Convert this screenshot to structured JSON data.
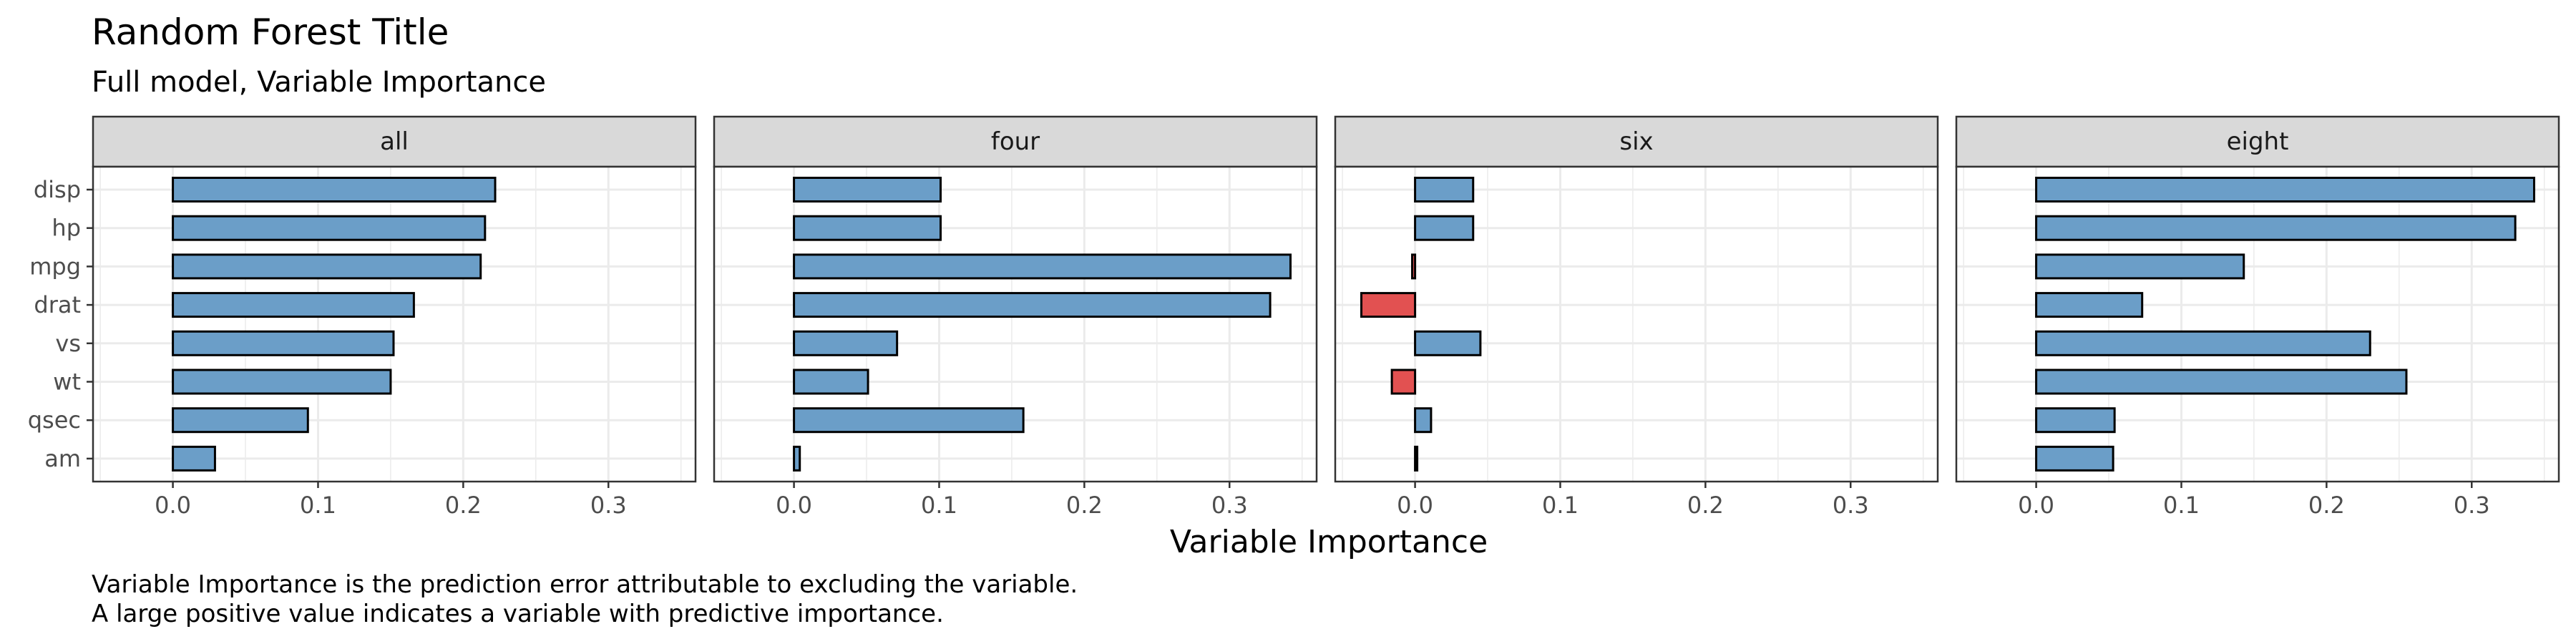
{
  "chart_data": {
    "type": "bar",
    "orientation": "horizontal",
    "title": "Random Forest Title",
    "subtitle": "Full model, Variable Importance",
    "xlabel": "Variable Importance",
    "ylabel": "",
    "caption_lines": [
      "Variable Importance is the prediction error attributable to excluding the variable.",
      "A large positive value indicates a variable with predictive importance."
    ],
    "categories": [
      "disp",
      "hp",
      "mpg",
      "drat",
      "vs",
      "wt",
      "qsec",
      "am"
    ],
    "xlim": [
      -0.055,
      0.36
    ],
    "x_ticks": [
      0.0,
      0.1,
      0.2,
      0.3
    ],
    "x_tick_labels": [
      "0.0",
      "0.1",
      "0.2",
      "0.3"
    ],
    "grid": true,
    "colors": {
      "positive": "#6b9ec8",
      "negative": "#e25151",
      "outline": "#000000",
      "strip_fill": "#d9d9d9",
      "grid": "#ebebeb",
      "panel_border": "#333333"
    },
    "panels": [
      {
        "name": "all",
        "values": [
          0.222,
          0.215,
          0.212,
          0.166,
          0.152,
          0.15,
          0.093,
          0.029
        ]
      },
      {
        "name": "four",
        "values": [
          0.101,
          0.101,
          0.342,
          0.328,
          0.071,
          0.051,
          0.158,
          0.004
        ]
      },
      {
        "name": "six",
        "values": [
          0.04,
          0.04,
          -0.002,
          -0.037,
          0.045,
          -0.016,
          0.011,
          0.001
        ]
      },
      {
        "name": "eight",
        "values": [
          0.343,
          0.33,
          0.143,
          0.073,
          0.23,
          0.255,
          0.054,
          0.053
        ]
      }
    ]
  }
}
